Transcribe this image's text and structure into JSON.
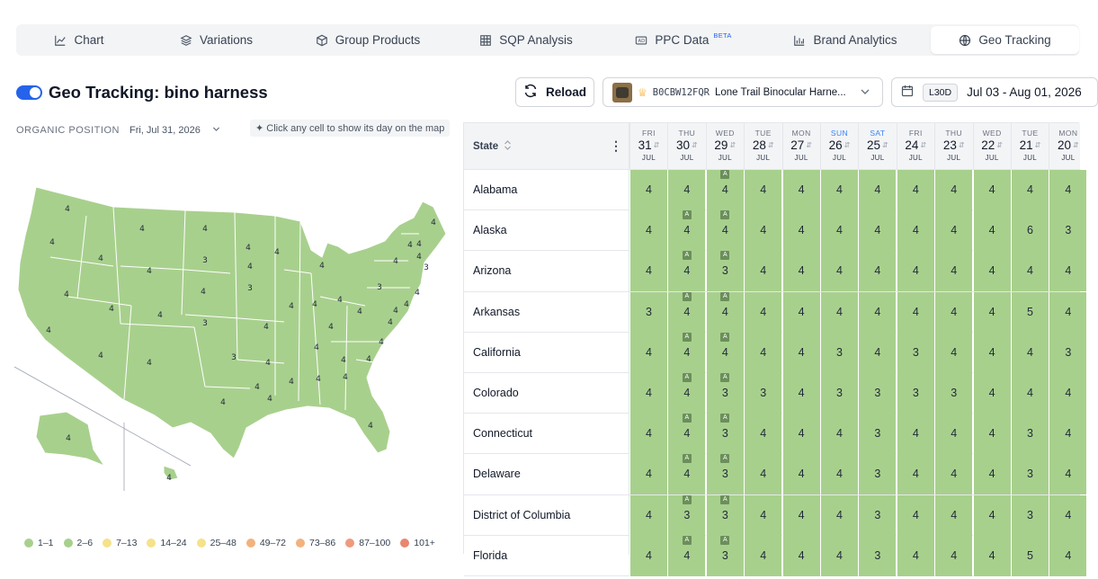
{
  "tabs": [
    {
      "label": "Chart",
      "icon": "line-chart-icon"
    },
    {
      "label": "Variations",
      "icon": "layers-icon"
    },
    {
      "label": "Group Products",
      "icon": "box-icon"
    },
    {
      "label": "SQP Analysis",
      "icon": "table-icon"
    },
    {
      "label": "PPC Data",
      "icon": "ad-icon",
      "badge": "BETA"
    },
    {
      "label": "Brand Analytics",
      "icon": "bar-chart-icon"
    },
    {
      "label": "Geo Tracking",
      "icon": "globe-icon",
      "active": true
    }
  ],
  "header": {
    "title": "Geo Tracking: bino harness",
    "toggle_on": true,
    "reload_label": "Reload",
    "product": {
      "asin": "B0CBW12FQR",
      "name": "Lone Trail Binocular Harne..."
    },
    "range_preset": "L30D",
    "range": "Jul 03 - Aug 01, 2026"
  },
  "map_panel": {
    "label": "ORGANIC POSITION",
    "date": "Fri, Jul 31, 2026",
    "hint": "Click any cell to show its day on the map",
    "state_values": [
      "4",
      "4",
      "4",
      "4",
      "4",
      "4",
      "4",
      "3",
      "4",
      "4",
      "4",
      "4",
      "4",
      "3",
      "4",
      "4",
      "4",
      "4",
      "3",
      "3",
      "4",
      "4",
      "4",
      "4",
      "4",
      "4",
      "4",
      "4",
      "4",
      "4",
      "4",
      "4",
      "4",
      "4",
      "4",
      "4",
      "4",
      "4",
      "4",
      "3",
      "4",
      "4",
      "4",
      "4",
      "4",
      "4",
      "3",
      "4",
      "4",
      "4",
      "4",
      "4",
      "4",
      "4",
      "4",
      "4",
      "4",
      "4",
      "4",
      "4",
      "4",
      "4",
      "4"
    ],
    "legend": [
      {
        "label": "1–1",
        "color": "#a8d08d"
      },
      {
        "label": "2–6",
        "color": "#a8d08d"
      },
      {
        "label": "7–13",
        "color": "#f5e28a"
      },
      {
        "label": "14–24",
        "color": "#f5e28a"
      },
      {
        "label": "25–48",
        "color": "#f5e28a"
      },
      {
        "label": "49–72",
        "color": "#f2b27d"
      },
      {
        "label": "73–86",
        "color": "#f2b27d"
      },
      {
        "label": "87–100",
        "color": "#ef9a7e"
      },
      {
        "label": "101+",
        "color": "#e8866e"
      }
    ]
  },
  "grid": {
    "state_header": "State",
    "days": [
      {
        "dow": "FRI",
        "day": "31",
        "mon": "JUL",
        "weekend": false
      },
      {
        "dow": "THU",
        "day": "30",
        "mon": "JUL",
        "weekend": false
      },
      {
        "dow": "WED",
        "day": "29",
        "mon": "JUL",
        "weekend": false
      },
      {
        "dow": "TUE",
        "day": "28",
        "mon": "JUL",
        "weekend": false
      },
      {
        "dow": "MON",
        "day": "27",
        "mon": "JUL",
        "weekend": false
      },
      {
        "dow": "SUN",
        "day": "26",
        "mon": "JUL",
        "weekend": true
      },
      {
        "dow": "SAT",
        "day": "25",
        "mon": "JUL",
        "weekend": true
      },
      {
        "dow": "FRI",
        "day": "24",
        "mon": "JUL",
        "weekend": false
      },
      {
        "dow": "THU",
        "day": "23",
        "mon": "JUL",
        "weekend": false
      },
      {
        "dow": "WED",
        "day": "22",
        "mon": "JUL",
        "weekend": false
      },
      {
        "dow": "TUE",
        "day": "21",
        "mon": "JUL",
        "weekend": false
      },
      {
        "dow": "MON",
        "day": "20",
        "mon": "JUL",
        "weekend": false
      }
    ],
    "rows": [
      {
        "state": "Alabama",
        "values": [
          "4",
          "4",
          "4",
          "4",
          "4",
          "4",
          "4",
          "4",
          "4",
          "4",
          "4",
          "4"
        ],
        "ad": [
          false,
          false,
          true,
          false,
          false,
          false,
          false,
          false,
          false,
          false,
          false,
          false
        ]
      },
      {
        "state": "Alaska",
        "values": [
          "4",
          "4",
          "4",
          "4",
          "4",
          "4",
          "4",
          "4",
          "4",
          "4",
          "6",
          "3"
        ],
        "ad": [
          false,
          true,
          true,
          false,
          false,
          false,
          false,
          false,
          false,
          false,
          false,
          false
        ]
      },
      {
        "state": "Arizona",
        "values": [
          "4",
          "4",
          "3",
          "4",
          "4",
          "4",
          "4",
          "4",
          "4",
          "4",
          "4",
          "4"
        ],
        "ad": [
          false,
          true,
          true,
          false,
          false,
          false,
          false,
          false,
          false,
          false,
          false,
          false
        ]
      },
      {
        "state": "Arkansas",
        "values": [
          "3",
          "4",
          "4",
          "4",
          "4",
          "4",
          "4",
          "4",
          "4",
          "4",
          "5",
          "4"
        ],
        "ad": [
          false,
          true,
          true,
          false,
          false,
          false,
          false,
          false,
          false,
          false,
          false,
          false
        ]
      },
      {
        "state": "California",
        "values": [
          "4",
          "4",
          "4",
          "4",
          "4",
          "3",
          "4",
          "3",
          "4",
          "4",
          "4",
          "3"
        ],
        "ad": [
          false,
          true,
          true,
          false,
          false,
          false,
          false,
          false,
          false,
          false,
          false,
          false
        ]
      },
      {
        "state": "Colorado",
        "values": [
          "4",
          "4",
          "3",
          "3",
          "4",
          "3",
          "3",
          "3",
          "3",
          "4",
          "4",
          "4"
        ],
        "ad": [
          false,
          true,
          true,
          false,
          false,
          false,
          false,
          false,
          false,
          false,
          false,
          false
        ]
      },
      {
        "state": "Connecticut",
        "values": [
          "4",
          "4",
          "3",
          "4",
          "4",
          "4",
          "3",
          "4",
          "4",
          "4",
          "3",
          "4"
        ],
        "ad": [
          false,
          true,
          true,
          false,
          false,
          false,
          false,
          false,
          false,
          false,
          false,
          false
        ]
      },
      {
        "state": "Delaware",
        "values": [
          "4",
          "4",
          "3",
          "4",
          "4",
          "4",
          "3",
          "4",
          "4",
          "4",
          "3",
          "4"
        ],
        "ad": [
          false,
          true,
          true,
          false,
          false,
          false,
          false,
          false,
          false,
          false,
          false,
          false
        ]
      },
      {
        "state": "District of Columbia",
        "values": [
          "4",
          "3",
          "3",
          "4",
          "4",
          "4",
          "3",
          "4",
          "4",
          "4",
          "3",
          "4"
        ],
        "ad": [
          false,
          true,
          true,
          false,
          false,
          false,
          false,
          false,
          false,
          false,
          false,
          false
        ]
      },
      {
        "state": "Florida",
        "values": [
          "4",
          "4",
          "3",
          "4",
          "4",
          "4",
          "3",
          "4",
          "4",
          "4",
          "5",
          "4"
        ],
        "ad": [
          false,
          true,
          true,
          false,
          false,
          false,
          false,
          false,
          false,
          false,
          false,
          false
        ]
      }
    ]
  },
  "colors": {
    "cell_green": "#a8d08d",
    "accent": "#2563eb",
    "map_fill": "#a8d08d"
  }
}
